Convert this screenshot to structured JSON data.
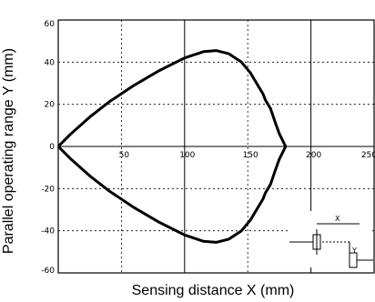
{
  "chart_data": {
    "type": "line",
    "title": "",
    "xlabel": "Sensing distance X (mm)",
    "ylabel": "Parallel operating range Y (mm)",
    "xlim": [
      0,
      250
    ],
    "ylim": [
      -60,
      60
    ],
    "x_ticks": [
      {
        "value": 50,
        "label": "50"
      },
      {
        "value": 100,
        "label": "100"
      },
      {
        "value": 150,
        "label": "150"
      },
      {
        "value": 200,
        "label": "200"
      },
      {
        "value": 250,
        "label": "250"
      }
    ],
    "y_ticks": [
      {
        "value": 60,
        "label": "60"
      },
      {
        "value": 40,
        "label": "40"
      },
      {
        "value": 20,
        "label": "20"
      },
      {
        "value": 0,
        "label": "0"
      },
      {
        "value": -20,
        "label": "-20"
      },
      {
        "value": -40,
        "label": "-40"
      },
      {
        "value": -60,
        "label": "-60"
      }
    ],
    "grid": true,
    "series": [
      {
        "x": [
          0,
          10,
          25,
          40,
          60,
          80,
          100,
          115,
          125,
          135,
          145,
          152,
          158,
          162,
          164,
          168,
          172,
          175,
          180
        ],
        "y": [
          0,
          6,
          14,
          21,
          29,
          36,
          42,
          45,
          45.5,
          44,
          40,
          35,
          29,
          25,
          22,
          18,
          11,
          6,
          0
        ]
      },
      {
        "x": [
          0,
          10,
          25,
          40,
          60,
          80,
          100,
          115,
          125,
          135,
          145,
          152,
          158,
          162,
          164,
          168,
          172,
          175,
          180
        ],
        "y": [
          0,
          -6,
          -14,
          -21,
          -29,
          -36,
          -42,
          -45,
          -45.5,
          -44,
          -40,
          -35,
          -29,
          -25,
          -22,
          -18,
          -11,
          -6,
          0
        ]
      }
    ],
    "annotations": [
      {
        "label": "X"
      },
      {
        "label": "Y"
      }
    ]
  }
}
